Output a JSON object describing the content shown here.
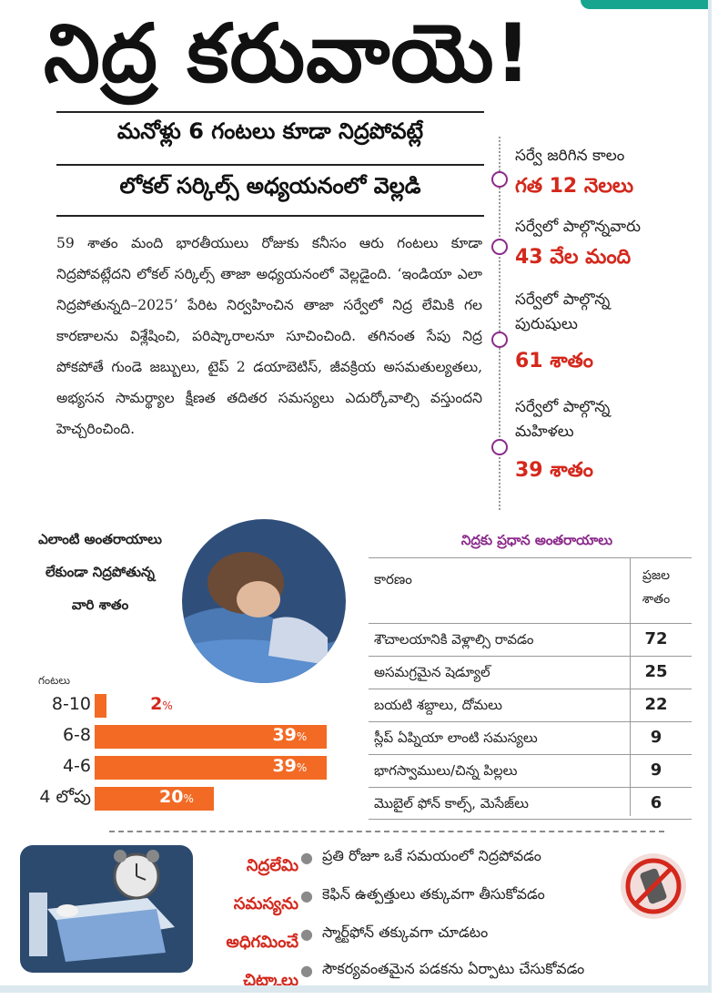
{
  "headline": "నిద్ర కరువాయె!",
  "subheads": [
    "మనోళ్లు 6 గంటలు కూడా నిద్రపోవట్లే",
    "లోకల్ సర్కిల్స్ అధ్యయనంలో వెల్లడి"
  ],
  "body": "59 శాతం మంది భారతీయులు రోజుకు కనీసం ఆరు గంటలు కూడా నిద్రపోవట్లేదని లోకల్ సర్కిల్స్ తాజా అధ్యయనంలో వెల్లడైంది. ‘ఇండియా ఎలా నిద్రపోతున్నది–2025’ పేరిట నిర్వహించిన తాజా సర్వేలో నిద్ర లేమికి గల కారణాలను విశ్లేషించి, పరిష్కారాలనూ సూచించింది. తగినంత సేపు నిద్ర పోకపోతే గుండె జబ్బులు, టైప్ 2 డయాబెటిస్, జీవక్రియ అసమతుల్యతలు, అభ్యసన సామర్థ్యాల క్షీణత తదితర సమస్యలు ఎదుర్కోవాల్సి వస్తుందని హెచ్చరించింది.",
  "timeline": [
    {
      "label": "సర్వే జరిగిన కాలం",
      "value": "గత 12 నెలలు"
    },
    {
      "label": "సర్వేలో పాల్గొన్నవారు",
      "value": "43 వేల మంది"
    },
    {
      "label": "సర్వేలో పాల్గొన్న పురుషులు",
      "value": "61 శాతం"
    },
    {
      "label": "సర్వేలో పాల్గొన్న మహిళలు",
      "value": "39 శాతం"
    }
  ],
  "chart_data": {
    "type": "bar",
    "orientation": "horizontal",
    "title": "ఎలాంటి అంతరాయాలు లేకుండా నిద్రపోతున్న వారి శాతం",
    "ylabel": "గంటలు",
    "categories": [
      "8-10",
      "6-8",
      "4-6",
      "4 లోపు"
    ],
    "values": [
      2,
      39,
      39,
      20
    ],
    "unit": "%",
    "bar_color": "#f26a24",
    "xlim": [
      0,
      40
    ]
  },
  "table": {
    "title": "నిద్రకు ప్రధాన అంతరాయాలు",
    "headers": [
      "కారణం",
      "ప్రజల",
      "శాతం"
    ],
    "rows": [
      {
        "reason": "శౌచాలయానికి వెళ్లాల్సి రావడం",
        "pct": "72"
      },
      {
        "reason": "అసమగ్రమైన షెడ్యూల్",
        "pct": "25"
      },
      {
        "reason": "బయటి శబ్దాలు, దోమలు",
        "pct": "22"
      },
      {
        "reason": "స్లీప్ ఏప్నియా లాంటి సమస్యలు",
        "pct": "9"
      },
      {
        "reason": "భాగస్వాములు/చిన్న పిల్లలు",
        "pct": "9"
      },
      {
        "reason": "మొబైల్ ఫోన్ కాల్స్, మెసేజ్‌లు",
        "pct": "6"
      }
    ]
  },
  "tips_title": [
    "నిద్రలేమి",
    "సమస్యను",
    "అధిగమించే",
    "చిట్కాలు"
  ],
  "tips": [
    "ప్రతి రోజూ ఒకే సమయంలో నిద్రపోవడం",
    "కెఫిన్ ఉత్పత్తులు తక్కువగా తీసుకోవడం",
    "స్మార్ట్‌ఫోన్ తక్కువగా చూడటం",
    "సౌకర్యవంతమైన పడకను ఏర్పాటు చేసుకోవడం"
  ],
  "colors": {
    "accent_red": "#d4281c",
    "bar_orange": "#f26a24",
    "purple": "#8b2a8b",
    "teal": "#18a58f"
  }
}
